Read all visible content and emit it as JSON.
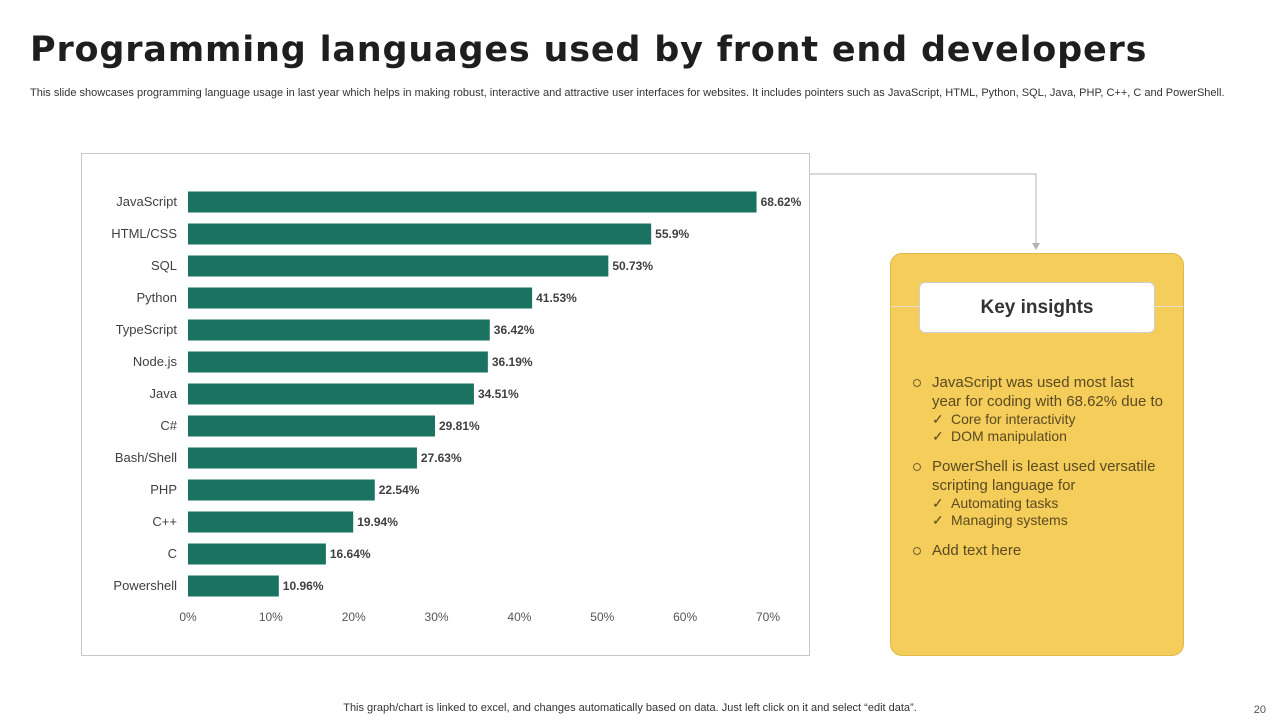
{
  "title": "Programming languages used by front end developers",
  "subtitle": "This slide showcases programming language usage in last year which helps in making robust, interactive and attractive user interfaces for websites. It includes pointers such as JavaScript, HTML, Python, SQL, Java, PHP, C++, C and PowerShell.",
  "chart_data": {
    "type": "bar",
    "orientation": "horizontal",
    "categories": [
      "JavaScript",
      "HTML/CSS",
      "SQL",
      "Python",
      "TypeScript",
      "Node.js",
      "Java",
      "C#",
      "Bash/Shell",
      "PHP",
      "C++",
      "C",
      "Powershell"
    ],
    "values": [
      68.62,
      55.9,
      50.73,
      41.53,
      36.42,
      36.19,
      34.51,
      29.81,
      27.63,
      22.54,
      19.94,
      16.64,
      10.96
    ],
    "value_labels": [
      "68.62%",
      "55.9%",
      "50.73%",
      "41.53%",
      "36.42%",
      "36.19%",
      "34.51%",
      "29.81%",
      "27.63%",
      "22.54%",
      "19.94%",
      "16.64%",
      "10.96%"
    ],
    "xlim": [
      0,
      70
    ],
    "x_ticks": [
      "0%",
      "10%",
      "20%",
      "30%",
      "40%",
      "50%",
      "60%",
      "70%"
    ],
    "grid": false,
    "bar_color": "#1a7361"
  },
  "insights": {
    "header": "Key insights",
    "items": [
      {
        "text": "JavaScript was used most last year for coding with 68.62% due to",
        "checks": [
          "Core for interactivity",
          "DOM manipulation"
        ]
      },
      {
        "text": "PowerShell is least used versatile scripting language for",
        "checks": [
          "Automating tasks",
          "Managing systems"
        ]
      },
      {
        "text": "Add text here",
        "checks": []
      }
    ],
    "check_symbol": "✓"
  },
  "footer": "This graph/chart is linked to excel,  and changes automatically based on data. Just left click on it and select “edit data”.",
  "page_number": "20",
  "colors": {
    "panel": "#f4cd5a",
    "bar": "#1a7361"
  }
}
